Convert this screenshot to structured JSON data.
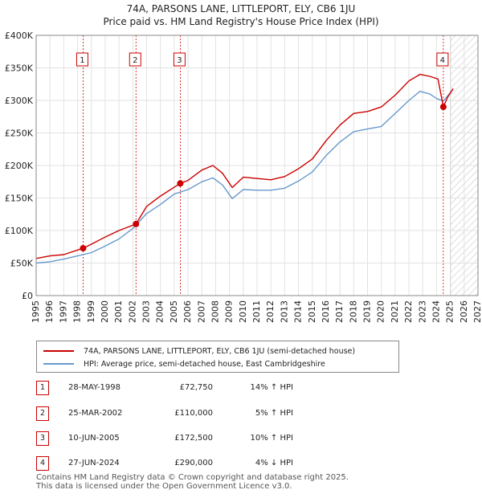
{
  "title_line1": "74A, PARSONS LANE, LITTLEPORT, ELY, CB6 1JU",
  "title_line2": "Price paid vs. HM Land Registry's House Price Index (HPI)",
  "colors": {
    "property": "#cc0000",
    "hpi": "#6699cc",
    "marker_line": "#cc0000",
    "forecast_hatch": "#bbbbbb"
  },
  "legend": {
    "property_label": "74A, PARSONS LANE, LITTLEPORT, ELY, CB6 1JU (semi-detached house)",
    "hpi_label": "HPI: Average price, semi-detached house, East Cambridgeshire"
  },
  "sales": [
    {
      "num": "1",
      "date": "28-MAY-1998",
      "price": "£72,750",
      "hpi": "14% ↑ HPI"
    },
    {
      "num": "2",
      "date": "25-MAR-2002",
      "price": "£110,000",
      "hpi": "5% ↑ HPI"
    },
    {
      "num": "3",
      "date": "10-JUN-2005",
      "price": "£172,500",
      "hpi": "10% ↑ HPI"
    },
    {
      "num": "4",
      "date": "27-JUN-2024",
      "price": "£290,000",
      "hpi": "4% ↓ HPI"
    }
  ],
  "footer": {
    "line1": "Contains HM Land Registry data © Crown copyright and database right 2025.",
    "line2": "This data is licensed under the Open Government Licence v3.0."
  },
  "chart_data": {
    "type": "line",
    "title": "74A, PARSONS LANE, LITTLEPORT, ELY, CB6 1JU — Price paid vs. HM Land Registry's House Price Index (HPI)",
    "xlabel": "",
    "ylabel": "",
    "xlim": [
      1995,
      2027
    ],
    "ylim": [
      0,
      400000
    ],
    "x_ticks": [
      1995,
      1996,
      1997,
      1998,
      1999,
      2000,
      2001,
      2002,
      2003,
      2004,
      2005,
      2006,
      2007,
      2008,
      2009,
      2010,
      2011,
      2012,
      2013,
      2014,
      2015,
      2016,
      2017,
      2018,
      2019,
      2020,
      2021,
      2022,
      2023,
      2024,
      2025,
      2026,
      2027
    ],
    "y_ticks": [
      0,
      50000,
      100000,
      150000,
      200000,
      250000,
      300000,
      350000,
      400000
    ],
    "y_tick_labels": [
      "£0",
      "£50K",
      "£100K",
      "£150K",
      "£200K",
      "£250K",
      "£300K",
      "£350K",
      "£400K"
    ],
    "grid": true,
    "forecast_from": 2025.0,
    "series": [
      {
        "name": "74A, PARSONS LANE, LITTLEPORT, ELY, CB6 1JU (semi-detached house)",
        "x": [
          1995,
          1996,
          1997,
          1998.4,
          1999,
          2000,
          2001,
          2002.23,
          2003,
          2004,
          2005.44,
          2006,
          2007,
          2007.8,
          2008.5,
          2009.2,
          2010,
          2011,
          2012,
          2013,
          2014,
          2015,
          2016,
          2017,
          2018,
          2019,
          2020,
          2021,
          2022,
          2022.8,
          2023.5,
          2024.1,
          2024.49,
          2024.8,
          2025.2
        ],
        "y": [
          57000,
          61000,
          63000,
          72750,
          79000,
          90000,
          100000,
          110000,
          137000,
          153000,
          172500,
          177000,
          193000,
          200000,
          188000,
          166000,
          182000,
          180000,
          178000,
          183000,
          195000,
          210000,
          238000,
          262000,
          280000,
          283000,
          290000,
          308000,
          330000,
          340000,
          337000,
          333000,
          290000,
          305000,
          318000
        ]
      },
      {
        "name": "HPI: Average price, semi-detached house, East Cambridgeshire",
        "x": [
          1995,
          1996,
          1997,
          1998,
          1999,
          2000,
          2001,
          2002,
          2003,
          2004,
          2005,
          2006,
          2007,
          2007.8,
          2008.5,
          2009.2,
          2010,
          2011,
          2012,
          2013,
          2014,
          2015,
          2016,
          2017,
          2018,
          2019,
          2020,
          2021,
          2022,
          2022.8,
          2023.5,
          2024,
          2024.5,
          2025,
          2025.2
        ],
        "y": [
          50000,
          52000,
          56000,
          61000,
          66000,
          76000,
          87000,
          103000,
          126000,
          140000,
          156000,
          163000,
          175000,
          181000,
          170000,
          149000,
          163000,
          162000,
          162000,
          165000,
          176000,
          190000,
          215000,
          236000,
          252000,
          256000,
          260000,
          280000,
          300000,
          314000,
          310000,
          303000,
          299000,
          312000,
          318000
        ]
      }
    ],
    "sale_markers": [
      {
        "label": "1",
        "x": 1998.4,
        "y": 72750
      },
      {
        "label": "2",
        "x": 2002.23,
        "y": 110000
      },
      {
        "label": "3",
        "x": 2005.44,
        "y": 172500
      },
      {
        "label": "4",
        "x": 2024.49,
        "y": 290000
      }
    ]
  }
}
